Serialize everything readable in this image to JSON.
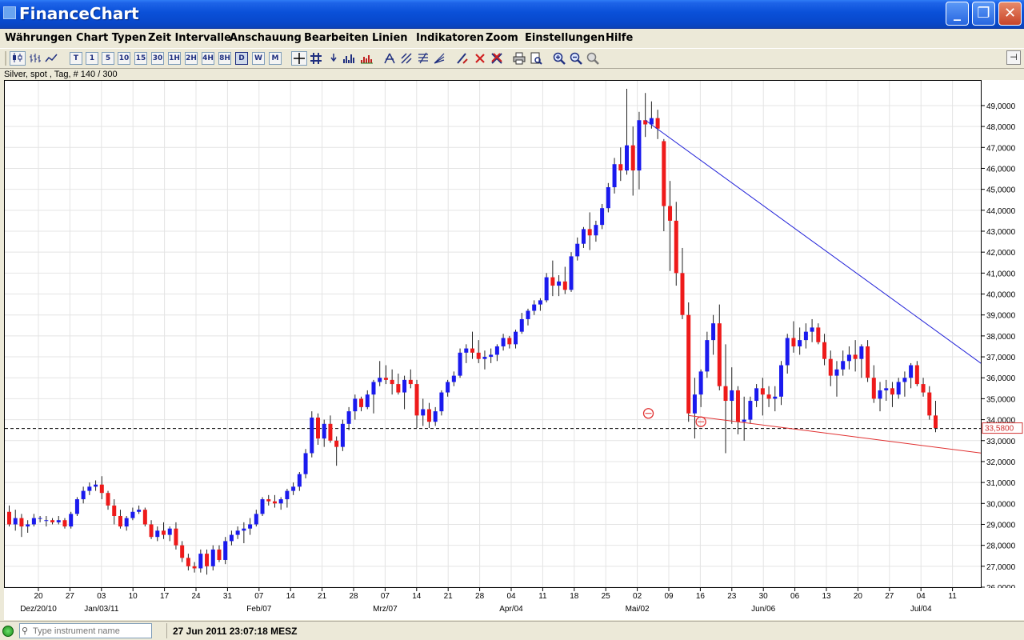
{
  "window": {
    "title": "FinanceChart",
    "minimize": "_",
    "maximize": "❐",
    "close": "✕"
  },
  "menu": [
    "Währungen",
    "Chart Typen",
    "Zeit Intervalle",
    "Anschauung",
    "Bearbeiten",
    "Linien",
    "Indikatoren",
    "Zoom",
    "Einstellungen",
    "Hilfe"
  ],
  "toolbar": {
    "intervals": [
      "T",
      "1",
      "5",
      "10",
      "15",
      "30",
      "1H",
      "2H",
      "4H",
      "8H",
      "D",
      "W",
      "M"
    ],
    "selected_interval": "D"
  },
  "chart_info": "Silver, spot , Tag, # 140 / 300",
  "status": {
    "search_placeholder": "Type instrument name",
    "time": "27 Jun 2011 23:07:18 MESZ"
  },
  "chart_data": {
    "type": "candlestick",
    "instrument": "Silver, spot",
    "current_price": 33.58,
    "current_price_label": "33,5800",
    "ylim": [
      26,
      49.8
    ],
    "y_ticks": [
      "26,0000",
      "27,0000",
      "28,0000",
      "29,0000",
      "30,0000",
      "31,0000",
      "32,0000",
      "33,0000",
      "34,0000",
      "35,0000",
      "36,0000",
      "37,0000",
      "38,0000",
      "39,0000",
      "40,0000",
      "41,0000",
      "42,0000",
      "43,0000",
      "44,0000",
      "45,0000",
      "46,0000",
      "47,0000",
      "48,0000",
      "49,0000"
    ],
    "x_ticks": [
      "20",
      "27",
      "03",
      "10",
      "17",
      "24",
      "31",
      "07",
      "14",
      "21",
      "28",
      "07",
      "14",
      "21",
      "28",
      "04",
      "11",
      "18",
      "25",
      "02",
      "09",
      "16",
      "23",
      "30",
      "06",
      "13",
      "20",
      "27",
      "04",
      "11"
    ],
    "x_months": [
      "Dez/20/10",
      "Jan/03/11",
      "Feb/07",
      "Mrz/07",
      "Apr/04",
      "Mai/02",
      "Jun/06",
      "Jul/04"
    ],
    "grid": true,
    "up_color": "#1a1aee",
    "down_color": "#ee1a1a",
    "candles": [
      [
        29.6,
        29.9,
        28.9,
        29.0
      ],
      [
        29.0,
        29.7,
        28.7,
        29.3
      ],
      [
        29.3,
        29.5,
        28.4,
        28.9
      ],
      [
        28.9,
        29.2,
        28.6,
        29.0
      ],
      [
        29.0,
        29.5,
        28.9,
        29.3
      ],
      [
        29.3,
        29.4,
        29.1,
        29.3
      ],
      [
        29.2,
        29.4,
        28.9,
        29.2
      ],
      [
        29.2,
        29.3,
        29.0,
        29.1
      ],
      [
        29.1,
        29.4,
        29.0,
        29.2
      ],
      [
        29.2,
        29.3,
        28.8,
        28.9
      ],
      [
        28.9,
        29.6,
        28.8,
        29.5
      ],
      [
        29.5,
        30.3,
        29.4,
        30.2
      ],
      [
        30.2,
        30.8,
        30.0,
        30.6
      ],
      [
        30.6,
        31.0,
        30.4,
        30.8
      ],
      [
        30.8,
        31.1,
        30.6,
        30.9
      ],
      [
        30.9,
        31.3,
        30.2,
        30.5
      ],
      [
        30.5,
        30.6,
        29.7,
        29.9
      ],
      [
        29.9,
        30.2,
        29.0,
        29.4
      ],
      [
        29.4,
        29.7,
        28.8,
        28.9
      ],
      [
        28.9,
        29.4,
        28.7,
        29.3
      ],
      [
        29.3,
        29.8,
        29.2,
        29.6
      ],
      [
        29.6,
        29.9,
        29.5,
        29.7
      ],
      [
        29.7,
        29.8,
        28.9,
        29.0
      ],
      [
        29.0,
        29.2,
        28.3,
        28.4
      ],
      [
        28.4,
        28.9,
        28.2,
        28.7
      ],
      [
        28.7,
        29.1,
        28.3,
        28.5
      ],
      [
        28.5,
        28.9,
        28.2,
        28.8
      ],
      [
        28.8,
        29.1,
        27.8,
        28.0
      ],
      [
        28.0,
        28.2,
        27.2,
        27.4
      ],
      [
        27.4,
        27.6,
        26.8,
        27.0
      ],
      [
        27.0,
        27.2,
        26.7,
        26.9
      ],
      [
        26.9,
        27.8,
        26.7,
        27.6
      ],
      [
        27.6,
        27.8,
        26.6,
        27.0
      ],
      [
        27.0,
        28.0,
        26.8,
        27.8
      ],
      [
        27.8,
        28.0,
        27.2,
        27.3
      ],
      [
        27.3,
        28.4,
        27.1,
        28.2
      ],
      [
        28.2,
        28.7,
        28.0,
        28.5
      ],
      [
        28.5,
        28.9,
        28.3,
        28.7
      ],
      [
        28.7,
        29.1,
        28.1,
        28.8
      ],
      [
        28.8,
        29.3,
        28.5,
        29.0
      ],
      [
        29.0,
        29.7,
        28.9,
        29.5
      ],
      [
        29.5,
        30.3,
        29.4,
        30.2
      ],
      [
        30.2,
        30.4,
        29.9,
        30.1
      ],
      [
        30.1,
        30.4,
        29.8,
        30.0
      ],
      [
        30.0,
        30.3,
        29.7,
        30.2
      ],
      [
        30.2,
        30.7,
        29.8,
        30.6
      ],
      [
        30.6,
        31.0,
        30.4,
        30.8
      ],
      [
        30.8,
        31.5,
        30.6,
        31.4
      ],
      [
        31.4,
        32.6,
        31.2,
        32.4
      ],
      [
        32.4,
        34.4,
        32.2,
        34.1
      ],
      [
        34.1,
        34.3,
        32.8,
        33.1
      ],
      [
        33.1,
        34.0,
        32.7,
        33.8
      ],
      [
        33.8,
        34.2,
        32.9,
        33.0
      ],
      [
        33.0,
        33.2,
        31.8,
        32.7
      ],
      [
        32.7,
        34.0,
        32.5,
        33.8
      ],
      [
        33.8,
        34.6,
        33.5,
        34.4
      ],
      [
        34.4,
        35.2,
        34.0,
        35.0
      ],
      [
        35.0,
        35.1,
        34.4,
        34.6
      ],
      [
        34.6,
        35.4,
        34.5,
        35.2
      ],
      [
        35.2,
        35.9,
        34.3,
        35.8
      ],
      [
        35.8,
        36.8,
        35.6,
        36.0
      ],
      [
        36.0,
        36.6,
        35.7,
        35.9
      ],
      [
        35.9,
        36.4,
        35.2,
        35.7
      ],
      [
        35.7,
        36.2,
        35.2,
        35.3
      ],
      [
        35.3,
        36.1,
        34.5,
        35.9
      ],
      [
        35.9,
        36.4,
        35.5,
        35.7
      ],
      [
        35.7,
        35.9,
        33.6,
        34.2
      ],
      [
        34.2,
        35.0,
        33.7,
        34.5
      ],
      [
        34.5,
        34.8,
        33.6,
        33.9
      ],
      [
        33.9,
        34.6,
        33.7,
        34.4
      ],
      [
        34.4,
        35.4,
        34.2,
        35.3
      ],
      [
        35.3,
        35.9,
        35.1,
        35.8
      ],
      [
        35.8,
        36.3,
        35.6,
        36.1
      ],
      [
        36.1,
        37.4,
        36.0,
        37.2
      ],
      [
        37.2,
        37.6,
        36.7,
        37.4
      ],
      [
        37.4,
        38.2,
        36.9,
        37.2
      ],
      [
        37.2,
        37.8,
        36.7,
        36.9
      ],
      [
        36.9,
        37.3,
        36.4,
        37.0
      ],
      [
        37.0,
        37.4,
        36.7,
        37.1
      ],
      [
        37.1,
        37.6,
        36.8,
        37.5
      ],
      [
        37.5,
        38.1,
        37.3,
        37.9
      ],
      [
        37.9,
        38.0,
        37.4,
        37.6
      ],
      [
        37.6,
        38.3,
        37.4,
        38.2
      ],
      [
        38.2,
        39.1,
        38.1,
        38.8
      ],
      [
        38.8,
        39.3,
        38.5,
        39.2
      ],
      [
        39.2,
        39.7,
        39.0,
        39.5
      ],
      [
        39.5,
        39.8,
        39.2,
        39.7
      ],
      [
        39.7,
        41.0,
        39.6,
        40.8
      ],
      [
        40.8,
        41.6,
        39.9,
        40.4
      ],
      [
        40.4,
        40.9,
        39.9,
        40.6
      ],
      [
        40.6,
        41.3,
        40.0,
        40.2
      ],
      [
        40.2,
        42.0,
        40.1,
        41.8
      ],
      [
        41.8,
        42.7,
        41.6,
        42.4
      ],
      [
        42.4,
        43.2,
        42.2,
        43.1
      ],
      [
        43.1,
        43.9,
        42.1,
        42.8
      ],
      [
        42.8,
        43.5,
        42.5,
        43.3
      ],
      [
        43.3,
        44.3,
        43.1,
        44.1
      ],
      [
        44.1,
        45.3,
        43.9,
        45.1
      ],
      [
        45.1,
        46.5,
        44.8,
        46.2
      ],
      [
        46.2,
        47.0,
        45.4,
        45.9
      ],
      [
        45.9,
        49.8,
        45.7,
        47.1
      ],
      [
        47.1,
        48.0,
        44.7,
        45.9
      ],
      [
        45.9,
        48.7,
        45.0,
        48.3
      ],
      [
        48.3,
        49.6,
        47.5,
        48.1
      ],
      [
        48.1,
        49.2,
        47.9,
        48.4
      ],
      [
        48.4,
        48.8,
        47.4,
        47.9
      ],
      [
        47.3,
        47.4,
        43.0,
        44.2
      ],
      [
        44.2,
        45.4,
        41.1,
        43.5
      ],
      [
        43.5,
        44.4,
        40.4,
        41.0
      ],
      [
        41.0,
        42.2,
        38.8,
        39.0
      ],
      [
        39.0,
        39.6,
        33.9,
        34.3
      ],
      [
        34.3,
        36.0,
        33.1,
        35.2
      ],
      [
        35.2,
        36.4,
        34.6,
        36.3
      ],
      [
        36.3,
        38.2,
        36.0,
        37.8
      ],
      [
        37.8,
        39.0,
        37.1,
        38.6
      ],
      [
        38.6,
        39.5,
        35.4,
        35.6
      ],
      [
        35.6,
        37.6,
        32.4,
        34.9
      ],
      [
        34.9,
        36.5,
        33.8,
        35.4
      ],
      [
        35.4,
        35.6,
        33.3,
        33.9
      ],
      [
        33.9,
        35.1,
        33.0,
        34.0
      ],
      [
        34.0,
        35.1,
        33.8,
        34.9
      ],
      [
        34.9,
        35.7,
        34.6,
        35.5
      ],
      [
        35.5,
        36.0,
        34.2,
        35.2
      ],
      [
        35.2,
        35.6,
        34.6,
        35.0
      ],
      [
        35.0,
        35.6,
        34.4,
        35.1
      ],
      [
        35.1,
        36.8,
        34.7,
        36.6
      ],
      [
        36.6,
        38.1,
        36.2,
        37.9
      ],
      [
        37.9,
        38.7,
        37.2,
        37.5
      ],
      [
        37.5,
        38.4,
        37.1,
        37.8
      ],
      [
        37.8,
        38.6,
        37.4,
        38.2
      ],
      [
        38.2,
        38.8,
        37.7,
        38.4
      ],
      [
        38.4,
        38.6,
        37.6,
        37.7
      ],
      [
        37.7,
        38.1,
        36.6,
        36.9
      ],
      [
        36.9,
        37.3,
        35.6,
        36.1
      ],
      [
        36.1,
        36.8,
        35.1,
        36.4
      ],
      [
        36.4,
        37.3,
        36.1,
        36.8
      ],
      [
        36.8,
        37.5,
        36.4,
        37.1
      ],
      [
        37.1,
        37.8,
        36.3,
        36.9
      ],
      [
        36.9,
        37.6,
        36.0,
        37.5
      ],
      [
        37.5,
        37.8,
        35.8,
        36.0
      ],
      [
        36.0,
        36.6,
        34.8,
        35.0
      ],
      [
        35.0,
        35.8,
        34.4,
        35.4
      ],
      [
        35.4,
        35.9,
        34.9,
        35.5
      ],
      [
        35.5,
        35.8,
        34.6,
        35.2
      ],
      [
        35.2,
        36.0,
        35.0,
        35.8
      ],
      [
        35.8,
        36.3,
        35.1,
        36.0
      ],
      [
        36.0,
        36.7,
        35.5,
        36.6
      ],
      [
        36.6,
        36.8,
        35.6,
        35.7
      ],
      [
        35.7,
        36.0,
        35.1,
        35.3
      ],
      [
        35.3,
        35.6,
        34.0,
        34.2
      ],
      [
        34.2,
        34.9,
        33.4,
        33.6
      ]
    ],
    "trendlines": [
      {
        "color": "#2020d8",
        "from": [
          103,
          48.3
        ],
        "to": [
          184,
          31.0
        ]
      },
      {
        "color": "#e03030",
        "from": [
          110,
          34.2
        ],
        "to": [
          184,
          31.4
        ]
      }
    ]
  }
}
